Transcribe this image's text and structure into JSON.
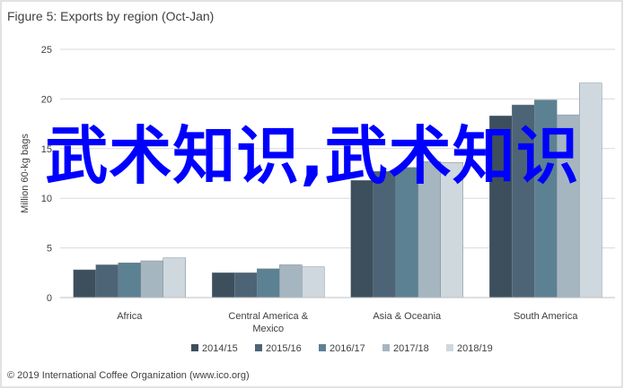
{
  "header": {
    "title": "Figure 5: Exports by region (Oct-Jan)"
  },
  "footer": {
    "source": "© 2019 International Coffee Organization (www.ico.org)"
  },
  "overlay": {
    "text": "武术知识,武术知识"
  },
  "colors": {
    "background": "#ffffff",
    "frame": "#d9d9d9",
    "grid": "#d9d9d9",
    "overlay_text": "#0000ff"
  },
  "chart_data": {
    "type": "bar",
    "title": "Figure 5: Exports by region (Oct-Jan)",
    "ylabel": "Million 60-kg bags",
    "xlabel": "",
    "ylim": [
      0,
      25
    ],
    "yticks": [
      0,
      5,
      10,
      15,
      20,
      25
    ],
    "grid": true,
    "legend_position": "bottom",
    "categories": [
      "Africa",
      "Central America & Mexico",
      "Asia & Oceania",
      "South America"
    ],
    "category_lines": [
      [
        "Africa"
      ],
      [
        "Central America &",
        "Mexico"
      ],
      [
        "Asia & Oceania"
      ],
      [
        "South America"
      ]
    ],
    "series": [
      {
        "name": "2014/15",
        "color": "#3d4f5c",
        "values": [
          2.8,
          2.5,
          11.8,
          18.3
        ]
      },
      {
        "name": "2015/16",
        "color": "#4d6476",
        "values": [
          3.3,
          2.5,
          12.7,
          19.4
        ]
      },
      {
        "name": "2016/17",
        "color": "#5c8193",
        "values": [
          3.5,
          2.9,
          13.1,
          19.9
        ]
      },
      {
        "name": "2017/18",
        "color": "#a6b6c1",
        "values": [
          3.7,
          3.3,
          13.7,
          18.4
        ]
      },
      {
        "name": "2018/19",
        "color": "#cfd8de",
        "values": [
          4.0,
          3.1,
          13.6,
          21.6
        ]
      }
    ]
  }
}
